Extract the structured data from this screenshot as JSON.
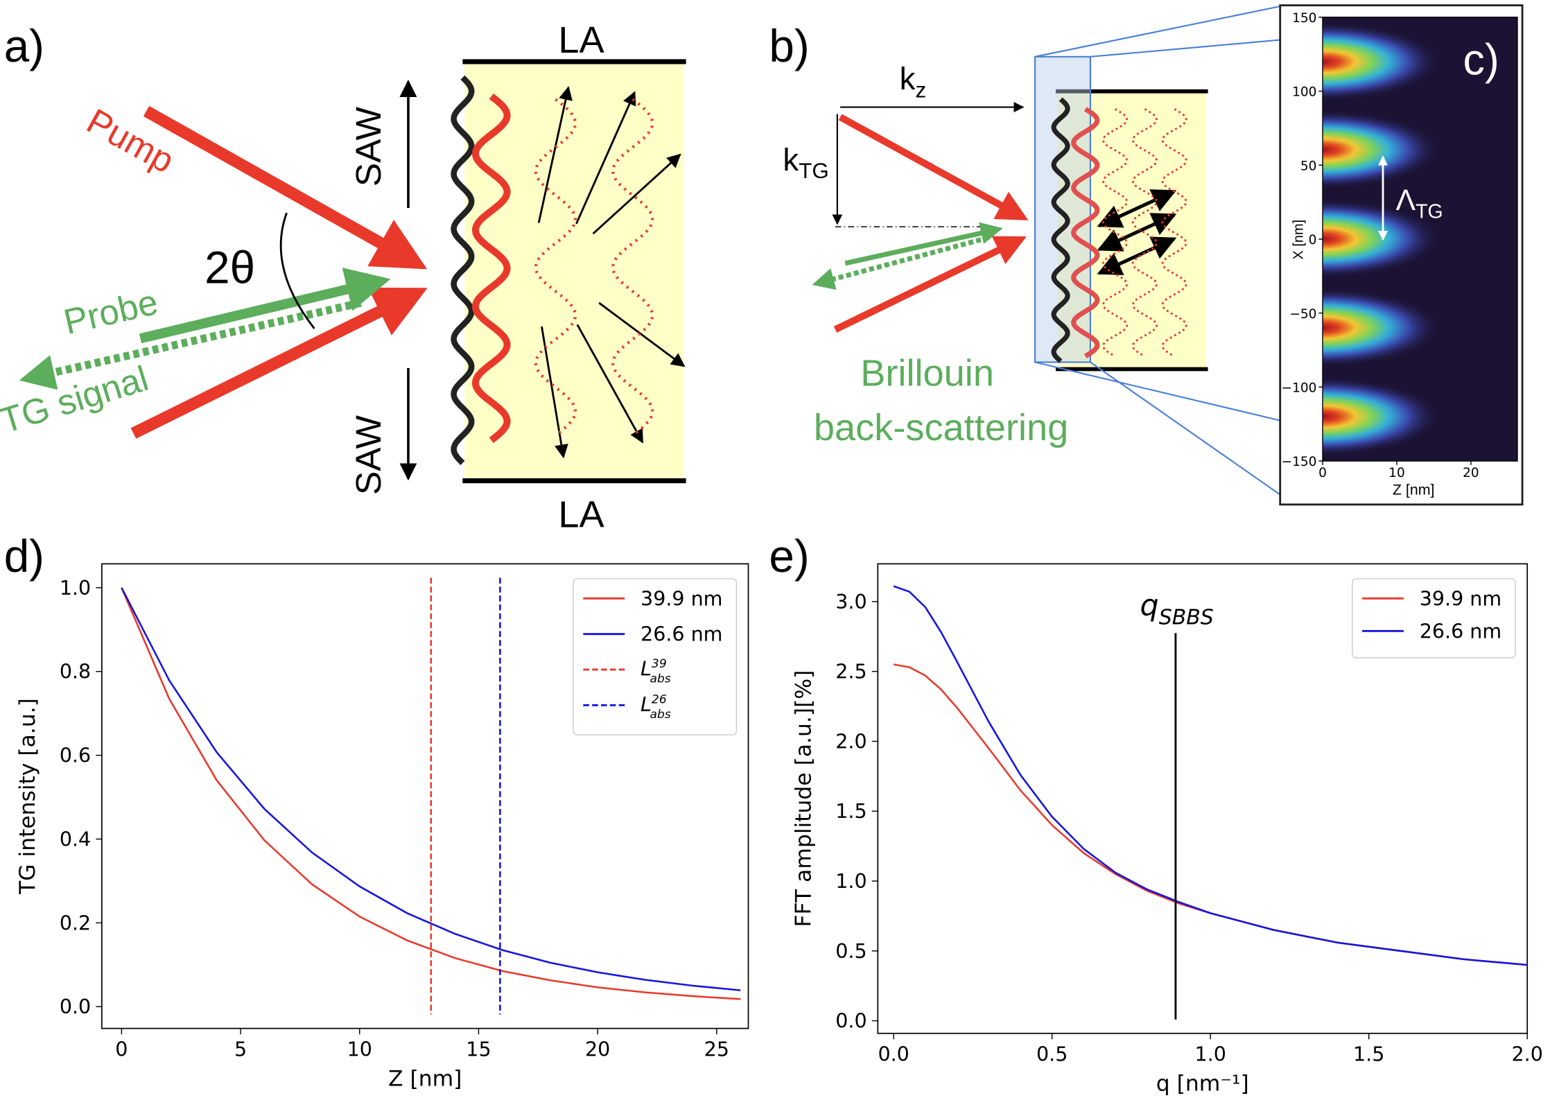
{
  "panels": {
    "a": {
      "label": "a)",
      "top": "LA",
      "bottom": "LA",
      "saw_up": "SAW",
      "saw_down": "SAW",
      "pump": "Pump",
      "angle": "2θ",
      "probe": "Probe",
      "signal": "TG signal"
    },
    "b": {
      "label": "b)",
      "kz": {
        "base": "k",
        "sub": "z"
      },
      "ktg": {
        "base": "k",
        "sub": "TG"
      },
      "line1": "Brillouin",
      "line2": "back-scattering"
    },
    "c": {
      "label": "c)",
      "period": {
        "base": "Λ",
        "sub": "TG"
      },
      "ylabel": "X [nm]",
      "xlabel": "Z [nm]",
      "yticks": [
        "150",
        "100",
        "50",
        "0",
        "−50",
        "−100",
        "−150"
      ],
      "xticks": [
        "0",
        "10",
        "20"
      ]
    },
    "d": {
      "label": "d)"
    },
    "e": {
      "label": "e)"
    }
  },
  "chart_data": [
    {
      "type": "line",
      "xlabel": "Z [nm]",
      "ylabel": "TG intensity [a.u.]",
      "x": [
        0,
        2,
        4,
        6,
        8,
        10,
        12,
        14,
        16,
        18,
        20,
        22,
        24,
        26
      ],
      "series": [
        {
          "name": "39.9 nm",
          "color": "#e8392b",
          "values": [
            1,
            0.735,
            0.54,
            0.397,
            0.292,
            0.215,
            0.158,
            0.116,
            0.085,
            0.063,
            0.046,
            0.034,
            0.025,
            0.018
          ]
        },
        {
          "name": "26.6 nm",
          "color": "#1414e0",
          "values": [
            1,
            0.779,
            0.607,
            0.472,
            0.368,
            0.287,
            0.223,
            0.174,
            0.135,
            0.105,
            0.082,
            0.064,
            0.05,
            0.039
          ]
        }
      ],
      "vlines": [
        {
          "x": 13,
          "color": "#e8392b",
          "dashed": true,
          "in_legend": true,
          "label": {
            "base": "L",
            "sub": "abs",
            "sup": "39"
          }
        },
        {
          "x": 15.9,
          "color": "#1414e0",
          "dashed": true,
          "in_legend": true,
          "label": {
            "base": "L",
            "sub": "abs",
            "sup": "26"
          }
        }
      ],
      "xlim": [
        -0.83,
        26.33
      ],
      "ylim": [
        -0.052,
        1.057
      ],
      "xticks": [
        0,
        5,
        10,
        15,
        20,
        25
      ],
      "yticks": [
        {
          "value": 0,
          "label": "0.0"
        },
        0.2,
        0.4,
        0.6,
        0.8,
        {
          "value": 1,
          "label": "1.0"
        }
      ],
      "legend": "upper right"
    },
    {
      "type": "line",
      "xlabel": "q [nm⁻¹]",
      "ylabel": "FFT amplitude [a.u.][%]",
      "x": [
        0,
        0.05,
        0.1,
        0.15,
        0.2,
        0.3,
        0.4,
        0.5,
        0.6,
        0.7,
        0.8,
        0.9,
        1.0,
        1.2,
        1.4,
        1.6,
        1.8,
        2.0
      ],
      "series": [
        {
          "name": "39.9 nm",
          "color": "#e8392b",
          "values": [
            2.55,
            2.53,
            2.47,
            2.37,
            2.24,
            1.95,
            1.65,
            1.4,
            1.2,
            1.05,
            0.93,
            0.84,
            0.77,
            0.65,
            0.56,
            0.5,
            0.44,
            0.4
          ]
        },
        {
          "name": "26.6 nm",
          "color": "#1414e0",
          "values": [
            3.11,
            3.07,
            2.96,
            2.78,
            2.57,
            2.14,
            1.76,
            1.46,
            1.23,
            1.06,
            0.94,
            0.85,
            0.77,
            0.65,
            0.56,
            0.5,
            0.44,
            0.4
          ]
        }
      ],
      "vlines": [
        {
          "x": 0.89,
          "color": "#000000",
          "dashed": false,
          "in_legend": false,
          "label": {
            "base": "q",
            "sub": "SBBS"
          }
        }
      ],
      "xlim": [
        -0.05,
        2.0
      ],
      "ylim": [
        -0.09,
        3.27
      ],
      "xticks": [
        {
          "value": 0,
          "label": "0.0"
        },
        0.5,
        {
          "value": 1,
          "label": "1.0"
        },
        1.5,
        {
          "value": 2,
          "label": "2.0"
        }
      ],
      "yticks": [
        {
          "value": 0,
          "label": "0.0"
        },
        0.5,
        {
          "value": 1,
          "label": "1.0"
        },
        1.5,
        {
          "value": 2,
          "label": "2.0"
        },
        2.5,
        {
          "value": 3,
          "label": "3.0"
        }
      ],
      "legend": "upper right"
    }
  ]
}
